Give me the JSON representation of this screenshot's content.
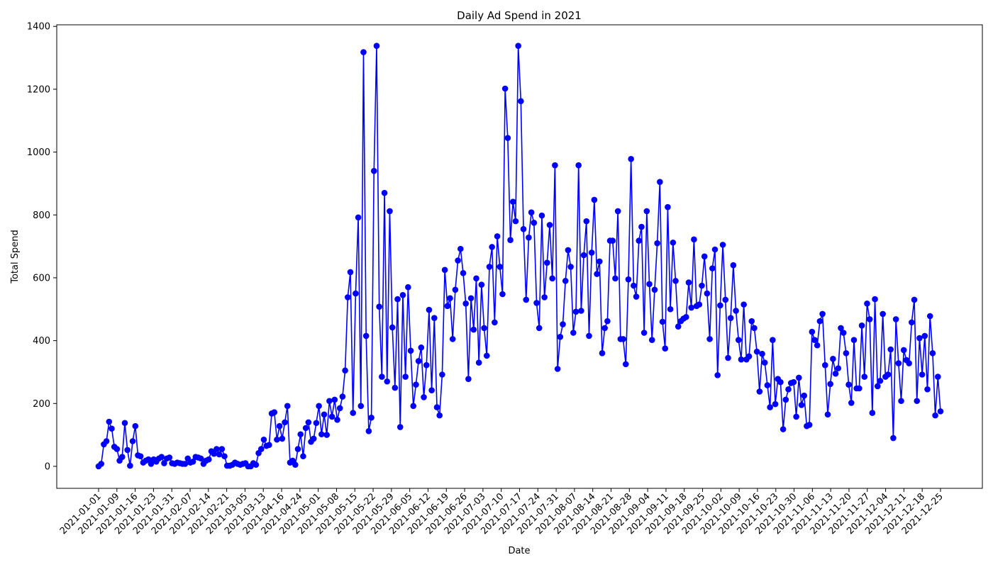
{
  "chart_data": {
    "type": "line",
    "title": "Daily Ad Spend in 2021",
    "xlabel": "Date",
    "ylabel": "Total Spend",
    "ylim": [
      -70,
      1405
    ],
    "yticks": [
      0,
      200,
      400,
      600,
      800,
      1000,
      1200,
      1400
    ],
    "grid": false,
    "marker": "circle",
    "color": "#0000ff",
    "xticks": [
      "2021-01-01",
      "2021-01-09",
      "2021-01-16",
      "2021-01-23",
      "2021-01-31",
      "2021-02-07",
      "2021-02-14",
      "2021-02-21",
      "2021-03-05",
      "2021-03-13",
      "2021-04-16",
      "2021-04-24",
      "2021-05-01",
      "2021-05-08",
      "2021-05-15",
      "2021-05-22",
      "2021-05-29",
      "2021-06-05",
      "2021-06-12",
      "2021-06-19",
      "2021-06-26",
      "2021-07-03",
      "2021-07-10",
      "2021-07-17",
      "2021-07-24",
      "2021-07-31",
      "2021-08-07",
      "2021-08-14",
      "2021-08-21",
      "2021-08-28",
      "2021-09-04",
      "2021-09-11",
      "2021-09-18",
      "2021-09-25",
      "2021-10-02",
      "2021-10-09",
      "2021-10-16",
      "2021-10-23",
      "2021-10-30",
      "2021-11-06",
      "2021-11-13",
      "2021-11-20",
      "2021-11-27",
      "2021-12-04",
      "2021-12-11",
      "2021-12-18",
      "2021-12-25"
    ],
    "series": [
      {
        "values": [
          0,
          8,
          70,
          80,
          142,
          120,
          62,
          55,
          18,
          30,
          138,
          52,
          2,
          80,
          128,
          35,
          32,
          12,
          18,
          22,
          8,
          22,
          15,
          25,
          30,
          10,
          25,
          28,
          10,
          8,
          12,
          10,
          8,
          8,
          25,
          12,
          15,
          30,
          28,
          25,
          8,
          18,
          22,
          48,
          40,
          55,
          38,
          55,
          32,
          2,
          2,
          5,
          12,
          8,
          5,
          8,
          10,
          0,
          0,
          10,
          5,
          42,
          55,
          85,
          65,
          68,
          168,
          172,
          85,
          128,
          88,
          140,
          192,
          12,
          18,
          5,
          55,
          102,
          32,
          122,
          140,
          78,
          88,
          138,
          192,
          102,
          165,
          100,
          208,
          158,
          212,
          148,
          185,
          222,
          305,
          538,
          618,
          170,
          550,
          792,
          192,
          1318,
          415,
          112,
          155,
          940,
          1338,
          508,
          285,
          870,
          270,
          812,
          442,
          250,
          532,
          125,
          545,
          285,
          570,
          368,
          192,
          260,
          335,
          378,
          220,
          322,
          498,
          242,
          472,
          188,
          162,
          292,
          625,
          510,
          535,
          405,
          562,
          655,
          692,
          615,
          518,
          278,
          535,
          435,
          598,
          330,
          578,
          440,
          352,
          635,
          698,
          458,
          732,
          635,
          548,
          1202,
          1045,
          720,
          842,
          780,
          1338,
          1162,
          755,
          530,
          728,
          808,
          775,
          520,
          440,
          798,
          538,
          648,
          768,
          598,
          958,
          310,
          412,
          452,
          590,
          688,
          635,
          425,
          492,
          958,
          495,
          672,
          780,
          415,
          680,
          848,
          612,
          652,
          360,
          440,
          462,
          718,
          718,
          598,
          812,
          405,
          405,
          325,
          595,
          978,
          575,
          540,
          718,
          762,
          425,
          812,
          580,
          402,
          562,
          710,
          905,
          460,
          375,
          825,
          500,
          712,
          590,
          445,
          462,
          470,
          475,
          585,
          505,
          722,
          510,
          515,
          575,
          668,
          550,
          405,
          630,
          690,
          290,
          512,
          705,
          530,
          345,
          472,
          640,
          495,
          402,
          340,
          515,
          340,
          350,
          462,
          440,
          365,
          238,
          358,
          330,
          258,
          188,
          402,
          198,
          278,
          268,
          118,
          212,
          245,
          265,
          268,
          158,
          282,
          195,
          225,
          128,
          132,
          428,
          402,
          385,
          462,
          485,
          322,
          165,
          262,
          342,
          295,
          312,
          440,
          425,
          360,
          260,
          202,
          402,
          248,
          248,
          448,
          285,
          518,
          468,
          170,
          532,
          255,
          272,
          485,
          285,
          292,
          372,
          90,
          468,
          328,
          208,
          370,
          338,
          328,
          458,
          530,
          208,
          408,
          292,
          415,
          245,
          478,
          360,
          162,
          285,
          175
        ]
      }
    ]
  }
}
